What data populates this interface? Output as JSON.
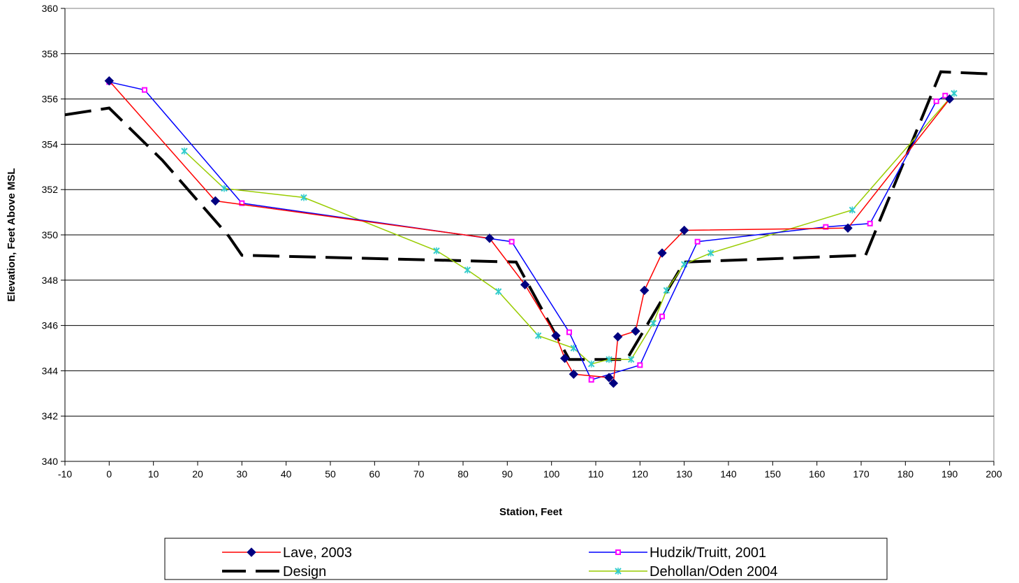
{
  "chart_data": {
    "type": "line",
    "title": "",
    "xlabel": "Station, Feet",
    "ylabel": "Elevation, Feet Above MSL",
    "xlim": [
      -10,
      200
    ],
    "ylim": [
      340,
      360
    ],
    "x_ticks": [
      -10,
      0,
      10,
      20,
      30,
      40,
      50,
      60,
      70,
      80,
      90,
      100,
      110,
      120,
      130,
      140,
      150,
      160,
      170,
      180,
      190,
      200
    ],
    "y_ticks": [
      340,
      342,
      344,
      346,
      348,
      350,
      352,
      354,
      356,
      358,
      360
    ],
    "grid": "horizontal",
    "legend_position": "bottom",
    "series": [
      {
        "name": "Lave, 2003",
        "color": "#ff0000",
        "marker": "diamond",
        "marker_color": "#000080",
        "style": "solid",
        "x": [
          0,
          24,
          86,
          94,
          101,
          103,
          105,
          113,
          114,
          115,
          119,
          121,
          125,
          130,
          167,
          190
        ],
        "y": [
          356.8,
          351.5,
          349.85,
          347.8,
          345.55,
          344.55,
          343.85,
          343.7,
          343.45,
          345.5,
          345.75,
          347.55,
          349.2,
          350.2,
          350.3,
          356.0
        ]
      },
      {
        "name": "Hudzik/Truitt, 2001",
        "color": "#0000ff",
        "marker": "square",
        "marker_color": "#ff00ff",
        "style": "solid",
        "x": [
          0,
          8,
          30,
          91,
          104,
          109,
          120,
          125,
          133,
          162,
          172,
          187,
          189
        ],
        "y": [
          356.75,
          356.4,
          351.4,
          349.7,
          345.7,
          343.6,
          344.25,
          346.4,
          349.7,
          350.35,
          350.5,
          355.9,
          356.15
        ]
      },
      {
        "name": "Design",
        "color": "#000000",
        "marker": "none",
        "style": "dashed",
        "x": [
          -10,
          0,
          12,
          27,
          30,
          92,
          104,
          117,
          130,
          171,
          188,
          200
        ],
        "y": [
          355.3,
          355.6,
          353.3,
          349.95,
          349.1,
          348.8,
          344.5,
          344.5,
          348.8,
          349.1,
          357.2,
          357.1
        ]
      },
      {
        "name": "Dehollan/Oden 2004",
        "color": "#99cc00",
        "marker": "star",
        "marker_color": "#33cccc",
        "style": "solid",
        "x": [
          17,
          26,
          44,
          74,
          81,
          88,
          97,
          105,
          109,
          113,
          118,
          123,
          126,
          130,
          136,
          168,
          191
        ],
        "y": [
          353.7,
          352.05,
          351.65,
          349.3,
          348.45,
          347.5,
          345.55,
          345.0,
          344.3,
          344.5,
          344.5,
          346.1,
          347.55,
          348.7,
          349.2,
          351.1,
          356.25
        ]
      }
    ]
  },
  "legend": {
    "entries": [
      "Lave, 2003",
      "Hudzik/Truitt, 2001",
      "Design",
      "Dehollan/Oden 2004"
    ]
  }
}
